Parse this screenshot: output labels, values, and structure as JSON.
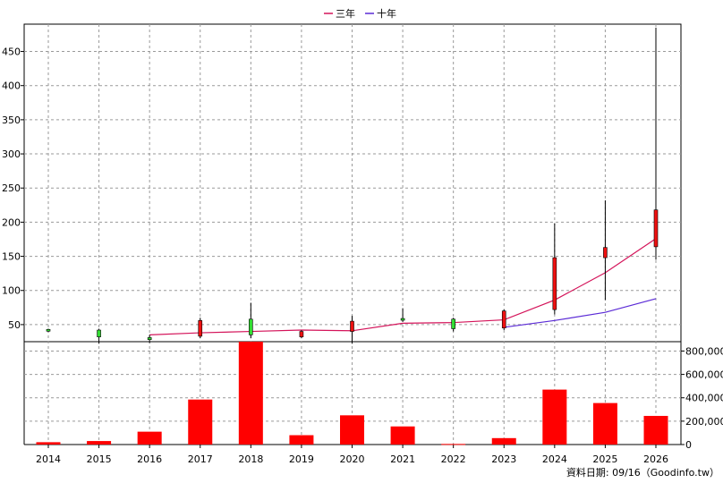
{
  "chart_data": {
    "type": "candlestick",
    "legend": {
      "placement": "top-center",
      "entries": [
        {
          "label": "三年",
          "color": "#d4145a"
        },
        {
          "label": "十年",
          "color": "#5b2bd6"
        }
      ]
    },
    "price_axis": {
      "ylim": [
        25,
        490
      ],
      "ticks": [
        50,
        100,
        150,
        200,
        250,
        300,
        350,
        400,
        450
      ]
    },
    "volume_axis": {
      "ylim": [
        0,
        880000
      ],
      "ticks": [
        0,
        200000,
        400000,
        600000,
        800000
      ],
      "tick_labels": [
        "0",
        "200,000",
        "400,000",
        "600,000",
        "800,000"
      ]
    },
    "categories": [
      "2014",
      "2015",
      "2016",
      "2017",
      "2018",
      "2019",
      "2020",
      "2021",
      "2022",
      "2023",
      "2024",
      "2025",
      "2026"
    ],
    "candles": [
      {
        "year": "2014",
        "open": 41,
        "high": 44,
        "low": 39,
        "close": 43
      },
      {
        "year": "2015",
        "open": 32,
        "high": 44,
        "low": 22,
        "close": 42
      },
      {
        "year": "2016",
        "open": 28,
        "high": 35,
        "low": 23,
        "close": 31
      },
      {
        "year": "2017",
        "open": 56,
        "high": 60,
        "low": 30,
        "close": 33
      },
      {
        "year": "2018",
        "open": 35,
        "high": 82,
        "low": 30,
        "close": 58
      },
      {
        "year": "2019",
        "open": 40,
        "high": 42,
        "low": 30,
        "close": 32
      },
      {
        "year": "2020",
        "open": 55,
        "high": 63,
        "low": 22,
        "close": 40
      },
      {
        "year": "2021",
        "open": 59,
        "high": 74,
        "low": 54,
        "close": 59
      },
      {
        "year": "2022",
        "open": 44,
        "high": 60,
        "low": 40,
        "close": 58
      },
      {
        "year": "2023",
        "open": 70,
        "high": 72,
        "low": 42,
        "close": 45
      },
      {
        "year": "2024",
        "open": 148,
        "high": 198,
        "low": 65,
        "close": 72
      },
      {
        "year": "2025",
        "open": 163,
        "high": 232,
        "low": 86,
        "close": 148
      },
      {
        "year": "2026",
        "open": 218,
        "high": 485,
        "low": 145,
        "close": 164
      }
    ],
    "volume": [
      20000,
      30000,
      110000,
      385000,
      880000,
      80000,
      250000,
      155000,
      5000,
      55000,
      470000,
      355000,
      245000
    ],
    "ma_3y": {
      "x": [
        "2016",
        "2017",
        "2018",
        "2019",
        "2020",
        "2021",
        "2022",
        "2023",
        "2024",
        "2025",
        "2026"
      ],
      "values": [
        35,
        38,
        40,
        42,
        41,
        52,
        53,
        57,
        86,
        126,
        176
      ]
    },
    "ma_10y": {
      "x": [
        "2023",
        "2024",
        "2025",
        "2026"
      ],
      "values": [
        46,
        56,
        68,
        88
      ]
    },
    "colors": {
      "up": "#33dd33",
      "down": "#ee1111",
      "volume": "#ff0000",
      "grid": "#9a9a9a"
    },
    "grid": true,
    "date_note": "資料日期: 09/16（Goodinfo.tw）"
  }
}
